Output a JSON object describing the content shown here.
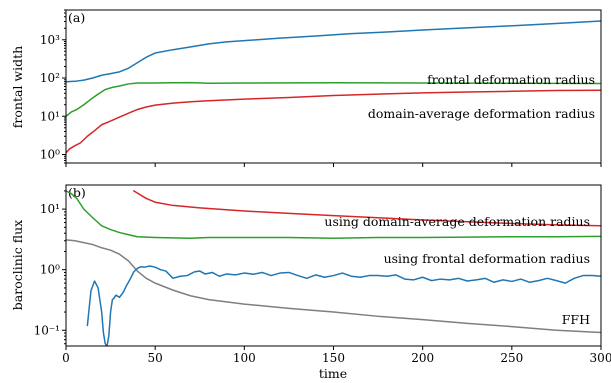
{
  "chart_data": [
    {
      "type": "line",
      "panel_label": "(a)",
      "ylabel": "frontal width",
      "xlabel": "",
      "yscale": "log",
      "xlim": [
        0,
        300
      ],
      "ylim": [
        0.6,
        6000
      ],
      "yticks": [
        {
          "value": 1,
          "label": "10⁰"
        },
        {
          "value": 10,
          "label": "10¹"
        },
        {
          "value": 100,
          "label": "10²"
        },
        {
          "value": 1000,
          "label": "10³"
        }
      ],
      "xticks": [
        0,
        50,
        100,
        150,
        200,
        250,
        300
      ],
      "series": [
        {
          "color": "#1f77b4",
          "x": [
            0,
            5,
            10,
            15,
            20,
            25,
            30,
            35,
            40,
            45,
            50,
            60,
            70,
            80,
            90,
            100,
            120,
            140,
            160,
            180,
            200,
            220,
            240,
            260,
            280,
            300
          ],
          "y": [
            80,
            82,
            88,
            100,
            118,
            130,
            145,
            180,
            250,
            350,
            450,
            550,
            650,
            780,
            880,
            950,
            1100,
            1250,
            1450,
            1600,
            1800,
            2000,
            2200,
            2450,
            2750,
            3100
          ]
        },
        {
          "color": "#2ca02c",
          "x": [
            0,
            3,
            6,
            10,
            14,
            18,
            22,
            26,
            30,
            35,
            40,
            50,
            60,
            70,
            80,
            100,
            150,
            200,
            250,
            300
          ],
          "y": [
            10,
            13,
            15,
            20,
            28,
            38,
            50,
            57,
            62,
            70,
            74,
            74,
            75,
            76,
            73,
            74,
            75,
            74,
            73,
            72
          ]
        },
        {
          "color": "#d62728",
          "x": [
            0,
            2,
            5,
            8,
            12,
            16,
            20,
            25,
            30,
            35,
            40,
            45,
            50,
            60,
            70,
            80,
            100,
            125,
            150,
            175,
            200,
            225,
            250,
            275,
            300
          ],
          "y": [
            1.1,
            1.4,
            1.7,
            2.0,
            3.0,
            4.2,
            6.0,
            7.5,
            9.5,
            12,
            15,
            17.5,
            19.5,
            22,
            24,
            25.5,
            28,
            31,
            35,
            38,
            41,
            43,
            45,
            47,
            48
          ]
        }
      ],
      "annotations": [
        "frontal deformation radius",
        "domain-average deformation radius"
      ]
    },
    {
      "type": "line",
      "panel_label": "(b)",
      "ylabel": "baroclinic flux",
      "xlabel": "time",
      "yscale": "log",
      "xlim": [
        0,
        300
      ],
      "ylim": [
        0.055,
        25
      ],
      "yticks": [
        {
          "value": 0.1,
          "label": "10⁻¹"
        },
        {
          "value": 1,
          "label": "10⁰"
        },
        {
          "value": 10,
          "label": "10¹"
        }
      ],
      "xticks": [
        0,
        50,
        100,
        150,
        200,
        250,
        300
      ],
      "series": [
        {
          "color": "#d62728",
          "x": [
            38,
            45,
            50,
            60,
            75,
            100,
            125,
            150,
            175,
            200,
            225,
            250,
            275,
            300
          ],
          "y": [
            20,
            15,
            13,
            11.5,
            10.5,
            9.3,
            8.5,
            7.8,
            7.2,
            6.6,
            6.2,
            5.8,
            5.5,
            5.3
          ]
        },
        {
          "color": "#2ca02c",
          "x": [
            0,
            3,
            6,
            10,
            15,
            20,
            25,
            30,
            40,
            50,
            60,
            70,
            80,
            100,
            125,
            150,
            175,
            200,
            225,
            250,
            275,
            300
          ],
          "y": [
            20,
            18,
            15,
            10,
            7.2,
            5.3,
            4.6,
            4.1,
            3.5,
            3.4,
            3.35,
            3.3,
            3.4,
            3.4,
            3.4,
            3.3,
            3.4,
            3.4,
            3.45,
            3.5,
            3.5,
            3.55
          ]
        },
        {
          "color": "#7f7f7f",
          "x": [
            0,
            5,
            10,
            15,
            20,
            25,
            30,
            35,
            40,
            45,
            50,
            60,
            70,
            80,
            100,
            125,
            150,
            175,
            200,
            225,
            250,
            275,
            300
          ],
          "y": [
            3.1,
            3.0,
            2.8,
            2.6,
            2.3,
            2.1,
            1.8,
            1.4,
            0.95,
            0.72,
            0.6,
            0.46,
            0.37,
            0.32,
            0.27,
            0.23,
            0.2,
            0.17,
            0.15,
            0.13,
            0.115,
            0.1,
            0.092
          ]
        },
        {
          "color": "#1f77b4",
          "x": [
            12,
            14,
            16,
            18,
            20,
            21,
            22,
            23,
            24,
            25,
            26,
            27,
            28,
            30,
            32,
            34,
            36,
            38,
            40,
            42,
            44,
            47,
            50,
            53,
            56,
            60,
            64,
            68,
            72,
            75,
            78,
            82,
            86,
            90,
            95,
            100,
            105,
            110,
            115,
            120,
            125,
            130,
            135,
            140,
            145,
            150,
            155,
            160,
            165,
            170,
            175,
            180,
            185,
            190,
            195,
            200,
            205,
            210,
            215,
            220,
            225,
            230,
            235,
            240,
            245,
            250,
            255,
            260,
            265,
            270,
            275,
            280,
            285,
            290,
            295,
            300
          ],
          "y": [
            0.12,
            0.45,
            0.65,
            0.5,
            0.2,
            0.09,
            0.06,
            0.055,
            0.08,
            0.2,
            0.32,
            0.34,
            0.38,
            0.35,
            0.42,
            0.55,
            0.7,
            0.92,
            1.05,
            1.12,
            1.1,
            1.15,
            1.1,
            1.0,
            0.95,
            0.72,
            0.78,
            0.8,
            0.92,
            0.95,
            0.85,
            0.9,
            0.78,
            0.85,
            0.82,
            0.88,
            0.84,
            0.9,
            0.8,
            0.88,
            0.9,
            0.8,
            0.72,
            0.82,
            0.75,
            0.8,
            0.88,
            0.78,
            0.75,
            0.8,
            0.8,
            0.78,
            0.82,
            0.7,
            0.68,
            0.75,
            0.66,
            0.7,
            0.68,
            0.72,
            0.65,
            0.68,
            0.72,
            0.62,
            0.68,
            0.64,
            0.7,
            0.62,
            0.66,
            0.72,
            0.66,
            0.6,
            0.72,
            0.8,
            0.8,
            0.78
          ]
        }
      ],
      "annotations": [
        "using domain-average deformation radius",
        "using frontal deformation radius",
        "FFH"
      ]
    }
  ]
}
